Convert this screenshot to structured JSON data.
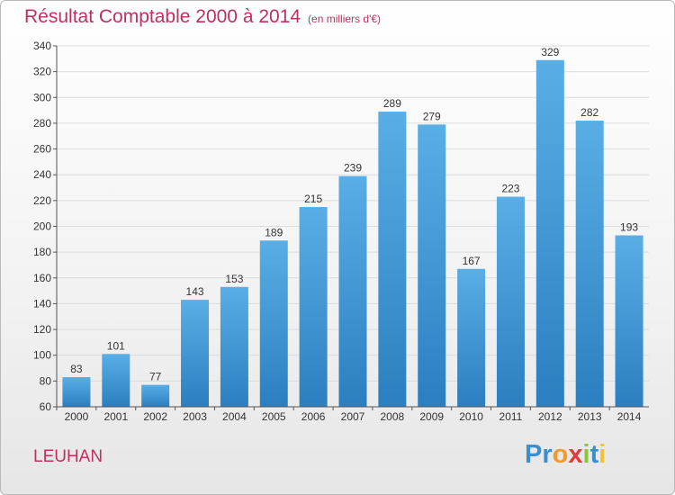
{
  "chart_data": {
    "type": "bar",
    "title": "Résultat Comptable 2000 à 2014",
    "subtitle": "(en milliers d'€)",
    "categories": [
      "2000",
      "2001",
      "2002",
      "2003",
      "2004",
      "2005",
      "2006",
      "2007",
      "2008",
      "2009",
      "2010",
      "2011",
      "2012",
      "2013",
      "2014"
    ],
    "values": [
      83,
      101,
      77,
      143,
      153,
      189,
      215,
      239,
      289,
      279,
      167,
      223,
      329,
      282,
      193
    ],
    "ylim": [
      60,
      340
    ],
    "yticks": [
      60,
      80,
      100,
      120,
      140,
      160,
      180,
      200,
      220,
      240,
      260,
      280,
      300,
      320,
      340
    ],
    "grid": true,
    "bar_color_top": "#5aaee6",
    "bar_color_bottom": "#2b7fc0"
  },
  "commune": "LEUHAN",
  "logo": {
    "letters": [
      "P",
      "r",
      "o",
      "x",
      "i",
      "t",
      "i"
    ],
    "colors": [
      "#3a8fd1",
      "#3a8fd1",
      "#f29a2e",
      "#e03a3a",
      "#8ac43f",
      "#3a8fd1",
      "#f2c12e"
    ]
  },
  "colors": {
    "accent": "#c0305f",
    "grid": "#dcdcdc"
  }
}
